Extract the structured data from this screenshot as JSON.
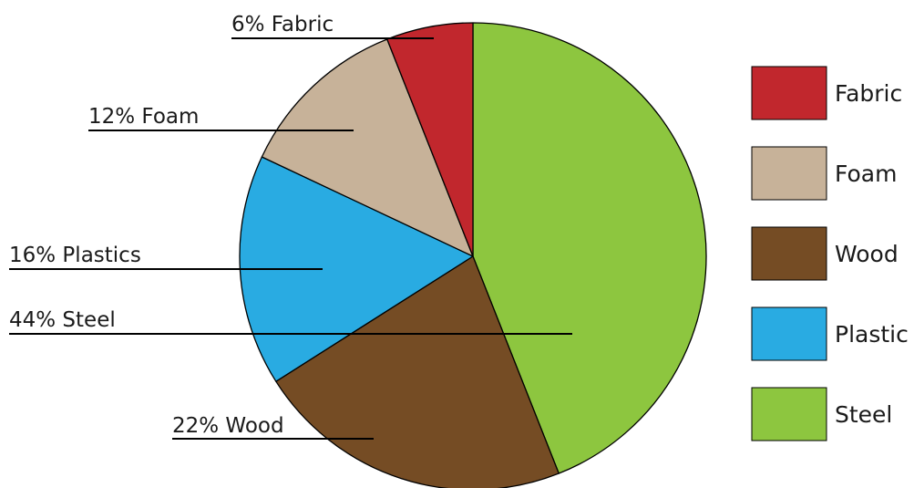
{
  "chart_data": {
    "type": "pie",
    "title": "",
    "slices": [
      {
        "name": "Steel",
        "value": 44,
        "label": "44% Steel",
        "color": "#8dc63f"
      },
      {
        "name": "Wood",
        "value": 22,
        "label": "22% Wood",
        "color": "#754c24"
      },
      {
        "name": "Plastics",
        "value": 16,
        "label": "16% Plastics",
        "color": "#29abe2"
      },
      {
        "name": "Foam",
        "value": 12,
        "label": "12% Foam",
        "color": "#c7b299"
      },
      {
        "name": "Fabric",
        "value": 6,
        "label": "6% Fabric",
        "color": "#c1272d"
      }
    ],
    "legend": {
      "position": "right",
      "entries": [
        {
          "label": "Fabric",
          "color": "#c1272d"
        },
        {
          "label": "Foam",
          "color": "#c7b299"
        },
        {
          "label": "Wood",
          "color": "#754c24"
        },
        {
          "label": "Plastic",
          "color": "#29abe2"
        },
        {
          "label": "Steel",
          "color": "#8dc63f"
        }
      ]
    }
  }
}
